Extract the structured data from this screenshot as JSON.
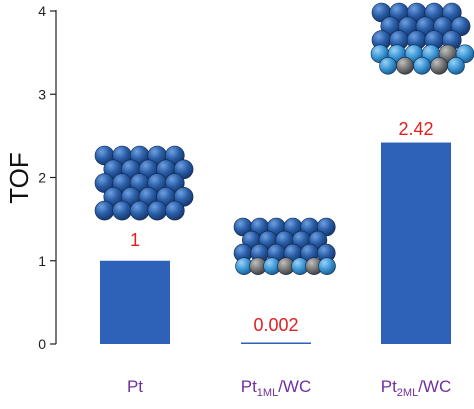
{
  "chart_data": {
    "type": "bar",
    "title": "",
    "xlabel": "",
    "ylabel": "TOF",
    "ylim": [
      0,
      4
    ],
    "yticks": [
      "0",
      "1",
      "2",
      "3",
      "4"
    ],
    "grid": false,
    "categories": [
      {
        "main": "Pt",
        "sub": "",
        "suffix": ""
      },
      {
        "main": "Pt",
        "sub": "1ML",
        "suffix": "/WC"
      },
      {
        "main": "Pt",
        "sub": "2ML",
        "suffix": "/WC"
      }
    ],
    "values": [
      1,
      0.002,
      2.42
    ],
    "value_labels": [
      "1",
      "0.002",
      "2.42"
    ],
    "colors": {
      "bar": "#2e62b8",
      "value_label": "#e02020",
      "category_label": "#7030a0",
      "axis": "#222222",
      "atom_pt": "#2a5ea8",
      "atom_pt_light": "#3d9ad8",
      "atom_w": "#7a7a7a"
    },
    "illustrations": [
      "pt-surface-model",
      "pt1ml-wc-surface-model",
      "pt2ml-wc-surface-model"
    ]
  }
}
